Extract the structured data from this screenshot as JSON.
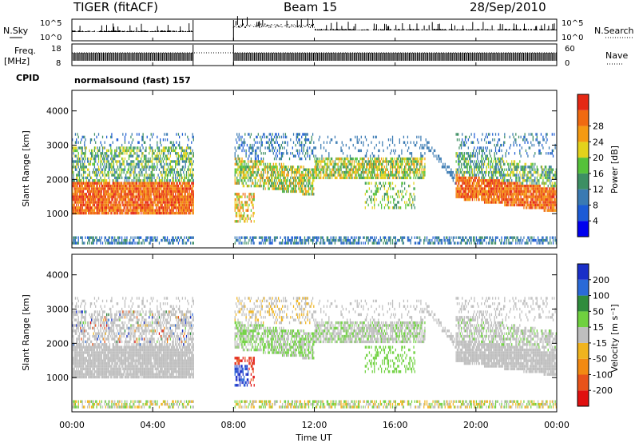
{
  "header": {
    "radar": "TIGER (fitACF)",
    "beam": "Beam 15",
    "date": "28/Sep/2010"
  },
  "strips": {
    "nsky_label": "N.Sky",
    "nsky_ticks": [
      "10^5",
      "10^0"
    ],
    "nsearch_label": "N.Search",
    "freq_label": "Freq.",
    "freq_unit": "[MHz]",
    "freq_ticks": [
      "18",
      "8"
    ],
    "nave_label": "Nave",
    "nave_ticks": [
      "60",
      "0"
    ],
    "cpid_label": "CPID",
    "cpid_value": "normalsound (fast) 157"
  },
  "colors": {
    "power_scale": [
      "#0000ee",
      "#1c5bd6",
      "#3a7ab2",
      "#3d8f63",
      "#55c23a",
      "#e3d21b",
      "#f59a12",
      "#f06a10",
      "#e52814"
    ],
    "velocity_scale": [
      "#1a2fc8",
      "#2a6ad8",
      "#2f8c3c",
      "#6fd13f",
      "#bebebe",
      "#f0b41e",
      "#f28a12",
      "#e8531a",
      "#e01010"
    ]
  },
  "chart_data": [
    {
      "type": "heatmap",
      "name": "power",
      "xlabel": "",
      "ylabel": "Slant Range [km]",
      "xlim": [
        0,
        24
      ],
      "ylim": [
        0,
        4600
      ],
      "yticks": [
        "1000",
        "2000",
        "3000",
        "4000"
      ],
      "colorbar_label": "Power [dB]",
      "colorbar_ticks": [
        "4",
        "8",
        "12",
        "16",
        "20",
        "24",
        "28"
      ],
      "data_gap": [
        6,
        8
      ],
      "bands": [
        {
          "t0": 0,
          "t1": 6,
          "r0": 900,
          "r1": 1900,
          "level": "high"
        },
        {
          "t0": 0,
          "t1": 6,
          "r0": 1900,
          "r1": 3000,
          "level": "medium"
        },
        {
          "t0": 8,
          "t1": 12,
          "r0": 1500,
          "r1": 2900,
          "level": "medium"
        },
        {
          "t0": 11,
          "t1": 17,
          "r0": 2000,
          "r1": 2600,
          "level": "medium"
        },
        {
          "t0": 19,
          "t1": 24,
          "r0": 1100,
          "r1": 2400,
          "level": "high"
        }
      ]
    },
    {
      "type": "heatmap",
      "name": "velocity",
      "xlabel": "Time UT",
      "ylabel": "Slant Range [km]",
      "xlim": [
        0,
        24
      ],
      "ylim": [
        0,
        4600
      ],
      "xticks": [
        "00:00",
        "04:00",
        "08:00",
        "12:00",
        "16:00",
        "20:00",
        "00:00"
      ],
      "yticks": [
        "1000",
        "2000",
        "3000",
        "4000"
      ],
      "colorbar_label": "Velocity [m s⁻¹]",
      "colorbar_ticks": [
        "200",
        "100",
        "50",
        "15",
        "-15",
        "-50",
        "-100",
        "-200"
      ],
      "data_gap": [
        6,
        8
      ]
    }
  ]
}
